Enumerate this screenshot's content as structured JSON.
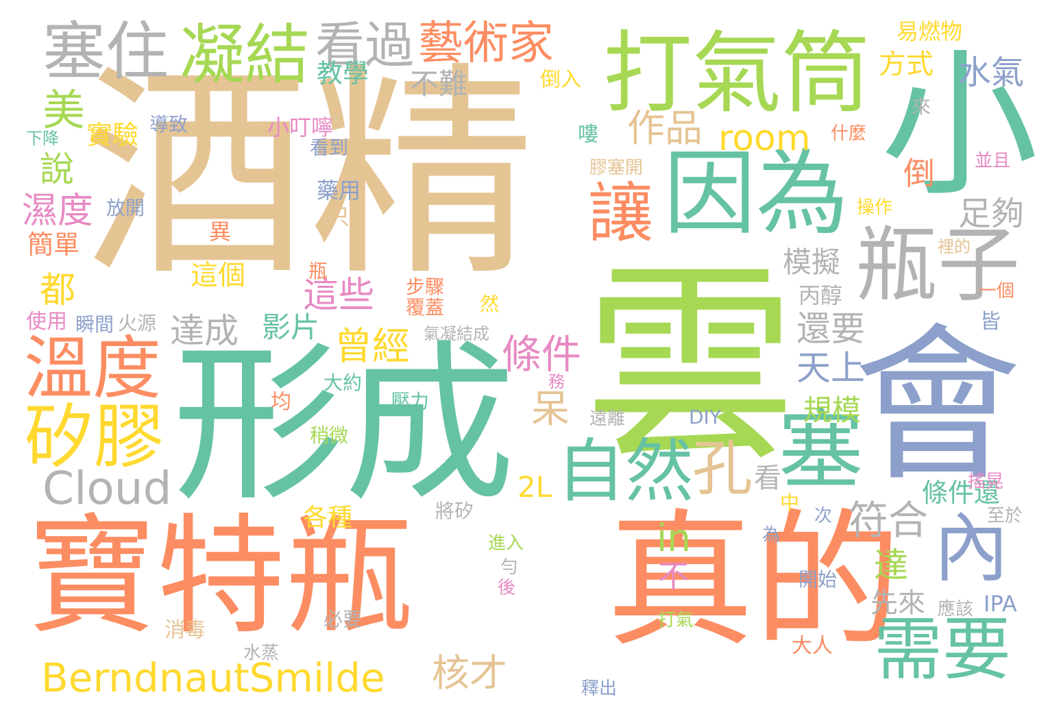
{
  "palette": {
    "green": "#66c2a5",
    "orange": "#fc8d62",
    "blue": "#8da0cb",
    "pink": "#e78ac3",
    "lime": "#a6d854",
    "yellow": "#ffd92f",
    "tan": "#e5c494",
    "gray": "#b3b3b3"
  },
  "words": [
    {
      "text": "酒精",
      "color": "tan"
    },
    {
      "text": "雲",
      "color": "lime"
    },
    {
      "text": "形成",
      "color": "green"
    },
    {
      "text": "寶特瓶",
      "color": "orange"
    },
    {
      "text": "真的",
      "color": "orange"
    },
    {
      "text": "會",
      "color": "blue"
    },
    {
      "text": "小",
      "color": "green"
    },
    {
      "text": "打氣筒",
      "color": "lime"
    },
    {
      "text": "因為",
      "color": "green"
    },
    {
      "text": "瓶子",
      "color": "gray"
    },
    {
      "text": "塞住",
      "color": "gray"
    },
    {
      "text": "凝結",
      "color": "lime"
    },
    {
      "text": "看過",
      "color": "gray"
    },
    {
      "text": "藝術家",
      "color": "orange"
    },
    {
      "text": "溫度",
      "color": "orange"
    },
    {
      "text": "矽膠",
      "color": "yellow"
    },
    {
      "text": "自然",
      "color": "green"
    },
    {
      "text": "塞",
      "color": "green"
    },
    {
      "text": "需要",
      "color": "green"
    },
    {
      "text": "內",
      "color": "blue"
    },
    {
      "text": "讓",
      "color": "orange"
    },
    {
      "text": "孔",
      "color": "tan"
    },
    {
      "text": "BerndnautSmilde",
      "color": "yellow"
    },
    {
      "text": "Cloud",
      "color": "gray"
    },
    {
      "text": "room",
      "color": "yellow"
    },
    {
      "text": "作品",
      "color": "tan"
    },
    {
      "text": "水氣",
      "color": "blue"
    },
    {
      "text": "足夠",
      "color": "gray"
    },
    {
      "text": "符合",
      "color": "gray"
    },
    {
      "text": "條件",
      "color": "pink"
    },
    {
      "text": "曾經",
      "color": "yellow"
    },
    {
      "text": "核才",
      "color": "tan"
    },
    {
      "text": "美",
      "color": "lime"
    },
    {
      "text": "濕度",
      "color": "pink"
    },
    {
      "text": "說",
      "color": "lime"
    },
    {
      "text": "都",
      "color": "yellow"
    },
    {
      "text": "達成",
      "color": "gray"
    },
    {
      "text": "這些",
      "color": "pink"
    },
    {
      "text": "影片",
      "color": "green"
    },
    {
      "text": "呆",
      "color": "tan"
    },
    {
      "text": "in",
      "color": "lime"
    },
    {
      "text": "天上",
      "color": "blue"
    },
    {
      "text": "規模",
      "color": "lime"
    },
    {
      "text": "模擬",
      "color": "gray"
    },
    {
      "text": "還要",
      "color": "gray"
    },
    {
      "text": "方式",
      "color": "yellow"
    },
    {
      "text": "教學",
      "color": "green"
    },
    {
      "text": "不難",
      "color": "gray"
    },
    {
      "text": "倒",
      "color": "orange"
    },
    {
      "text": "達",
      "color": "lime"
    },
    {
      "text": "先來",
      "color": "gray"
    },
    {
      "text": "條件還",
      "color": "green"
    },
    {
      "text": "看",
      "color": "gray"
    },
    {
      "text": "不",
      "color": "pink"
    },
    {
      "text": "2L",
      "color": "yellow"
    },
    {
      "text": "IPA",
      "color": "blue"
    },
    {
      "text": "易燃物",
      "color": "yellow"
    },
    {
      "text": "實驗",
      "color": "yellow"
    },
    {
      "text": "簡單",
      "color": "orange"
    },
    {
      "text": "這個",
      "color": "yellow"
    },
    {
      "text": "小叮嚀",
      "color": "pink"
    },
    {
      "text": "藥用",
      "color": "blue"
    },
    {
      "text": "各種",
      "color": "yellow"
    },
    {
      "text": "丙醇",
      "color": "gray"
    },
    {
      "text": "倒入",
      "color": "yellow"
    },
    {
      "text": "導致",
      "color": "blue"
    },
    {
      "text": "看到",
      "color": "blue"
    },
    {
      "text": "下降",
      "color": "green"
    },
    {
      "text": "使用",
      "color": "pink"
    },
    {
      "text": "瞬間",
      "color": "blue"
    },
    {
      "text": "火源",
      "color": "gray"
    },
    {
      "text": "放開",
      "color": "blue"
    },
    {
      "text": "異",
      "color": "orange"
    },
    {
      "text": "只",
      "color": "tan"
    },
    {
      "text": "瓶",
      "color": "orange"
    },
    {
      "text": "步驟",
      "color": "orange"
    },
    {
      "text": "覆蓋",
      "color": "orange"
    },
    {
      "text": "然",
      "color": "yellow"
    },
    {
      "text": "氣凝結成",
      "color": "gray"
    },
    {
      "text": "大約",
      "color": "green"
    },
    {
      "text": "壓力",
      "color": "green"
    },
    {
      "text": "務",
      "color": "pink"
    },
    {
      "text": "均",
      "color": "orange"
    },
    {
      "text": "稍微",
      "color": "lime"
    },
    {
      "text": "遠離",
      "color": "gray"
    },
    {
      "text": "DIY",
      "color": "blue"
    },
    {
      "text": "來",
      "color": "gray"
    },
    {
      "text": "嘍",
      "color": "green"
    },
    {
      "text": "膠塞開",
      "color": "tan"
    },
    {
      "text": "什麼",
      "color": "orange"
    },
    {
      "text": "並且",
      "color": "pink"
    },
    {
      "text": "操作",
      "color": "yellow"
    },
    {
      "text": "裡的",
      "color": "tan"
    },
    {
      "text": "一個",
      "color": "orange"
    },
    {
      "text": "皆",
      "color": "blue"
    },
    {
      "text": "將矽",
      "color": "gray"
    },
    {
      "text": "中",
      "color": "yellow"
    },
    {
      "text": "搖晃",
      "color": "pink"
    },
    {
      "text": "次",
      "color": "blue"
    },
    {
      "text": "至於",
      "color": "gray"
    },
    {
      "text": "為",
      "color": "blue"
    },
    {
      "text": "進入",
      "color": "lime"
    },
    {
      "text": "勻",
      "color": "gray"
    },
    {
      "text": "後",
      "color": "pink"
    },
    {
      "text": "開始",
      "color": "blue"
    },
    {
      "text": "應該",
      "color": "gray"
    },
    {
      "text": "消毒",
      "color": "tan"
    },
    {
      "text": "必要",
      "color": "gray"
    },
    {
      "text": "水蒸",
      "color": "gray"
    },
    {
      "text": "打氣",
      "color": "lime"
    },
    {
      "text": "大人",
      "color": "orange"
    },
    {
      "text": "釋出",
      "color": "blue"
    }
  ]
}
